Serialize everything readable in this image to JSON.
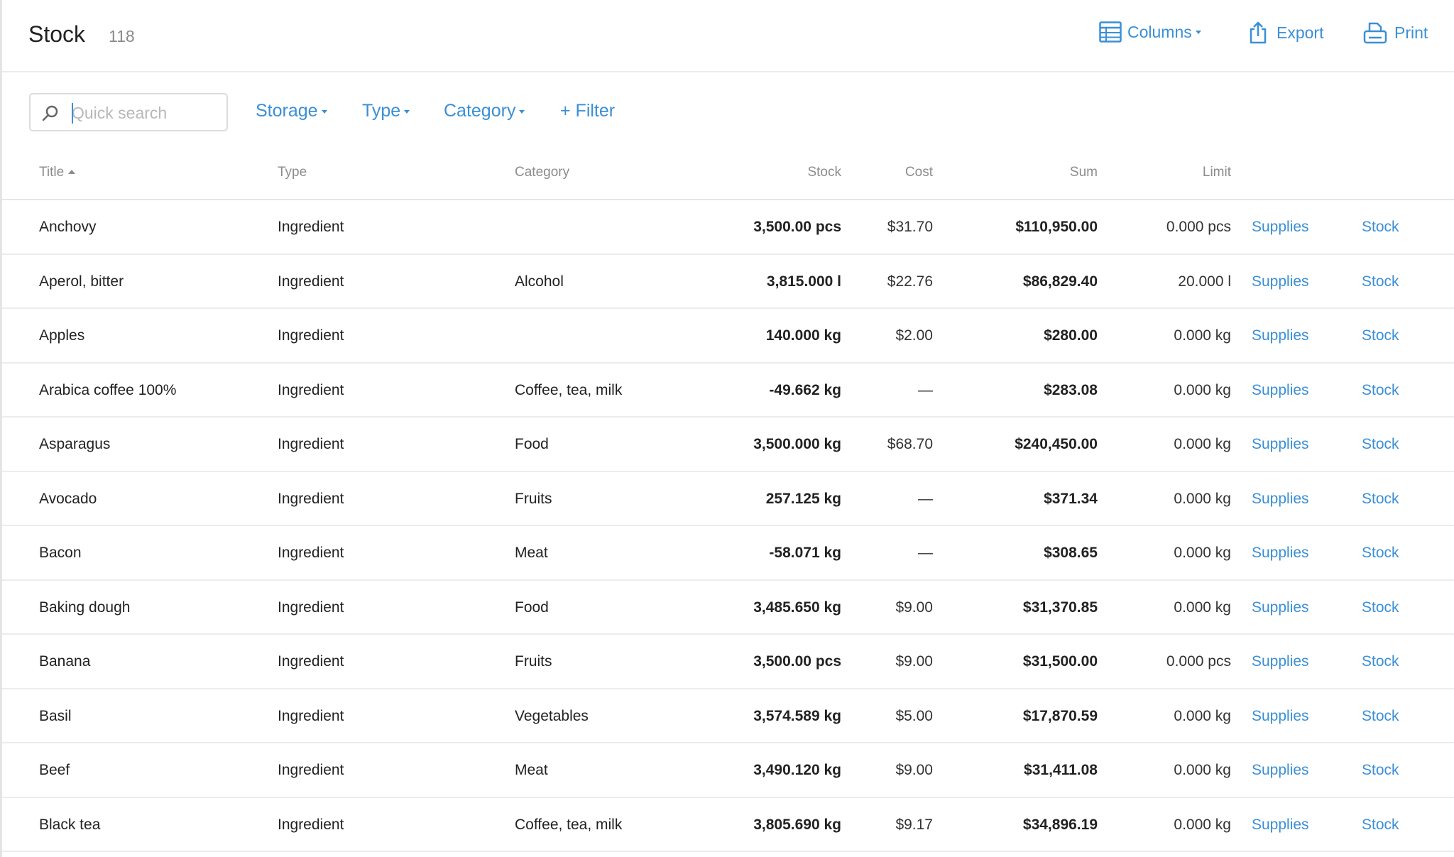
{
  "header": {
    "title": "Stock",
    "count": "118",
    "columns_label": "Columns",
    "export_label": "Export",
    "print_label": "Print"
  },
  "filters": {
    "search_placeholder": "Quick search",
    "storage_label": "Storage",
    "type_label": "Type",
    "category_label": "Category",
    "add_filter_label": "+ Filter"
  },
  "table": {
    "headers": {
      "title": "Title",
      "type": "Type",
      "category": "Category",
      "stock": "Stock",
      "cost": "Cost",
      "sum": "Sum",
      "limit": "Limit"
    },
    "sort": "title-ascending",
    "rows": [
      {
        "title": "Anchovy",
        "type": "Ingredient",
        "category": "",
        "stock": "3,500.00 pcs",
        "cost": "$31.70",
        "sum": "$110,950.00",
        "limit": "0.000 pcs",
        "supplies": "Supplies",
        "stock_link": "Stock"
      },
      {
        "title": "Aperol, bitter",
        "type": "Ingredient",
        "category": "Alcohol",
        "stock": "3,815.000 l",
        "cost": "$22.76",
        "sum": "$86,829.40",
        "limit": "20.000 l",
        "supplies": "Supplies",
        "stock_link": "Stock"
      },
      {
        "title": "Apples",
        "type": "Ingredient",
        "category": "",
        "stock": "140.000 kg",
        "cost": "$2.00",
        "sum": "$280.00",
        "limit": "0.000 kg",
        "supplies": "Supplies",
        "stock_link": "Stock"
      },
      {
        "title": "Arabica coffee 100%",
        "type": "Ingredient",
        "category": "Coffee, tea, milk",
        "stock": "-49.662 kg",
        "cost": "—",
        "sum": "$283.08",
        "limit": "0.000 kg",
        "supplies": "Supplies",
        "stock_link": "Stock"
      },
      {
        "title": "Asparagus",
        "type": "Ingredient",
        "category": "Food",
        "stock": "3,500.000 kg",
        "cost": "$68.70",
        "sum": "$240,450.00",
        "limit": "0.000 kg",
        "supplies": "Supplies",
        "stock_link": "Stock"
      },
      {
        "title": "Avocado",
        "type": "Ingredient",
        "category": "Fruits",
        "stock": "257.125 kg",
        "cost": "—",
        "sum": "$371.34",
        "limit": "0.000 kg",
        "supplies": "Supplies",
        "stock_link": "Stock"
      },
      {
        "title": "Bacon",
        "type": "Ingredient",
        "category": "Meat",
        "stock": "-58.071 kg",
        "cost": "—",
        "sum": "$308.65",
        "limit": "0.000 kg",
        "supplies": "Supplies",
        "stock_link": "Stock"
      },
      {
        "title": "Baking dough",
        "type": "Ingredient",
        "category": "Food",
        "stock": "3,485.650 kg",
        "cost": "$9.00",
        "sum": "$31,370.85",
        "limit": "0.000 kg",
        "supplies": "Supplies",
        "stock_link": "Stock"
      },
      {
        "title": "Banana",
        "type": "Ingredient",
        "category": "Fruits",
        "stock": "3,500.00 pcs",
        "cost": "$9.00",
        "sum": "$31,500.00",
        "limit": "0.000 pcs",
        "supplies": "Supplies",
        "stock_link": "Stock"
      },
      {
        "title": "Basil",
        "type": "Ingredient",
        "category": "Vegetables",
        "stock": "3,574.589 kg",
        "cost": "$5.00",
        "sum": "$17,870.59",
        "limit": "0.000 kg",
        "supplies": "Supplies",
        "stock_link": "Stock"
      },
      {
        "title": "Beef",
        "type": "Ingredient",
        "category": "Meat",
        "stock": "3,490.120 kg",
        "cost": "$9.00",
        "sum": "$31,411.08",
        "limit": "0.000 kg",
        "supplies": "Supplies",
        "stock_link": "Stock"
      },
      {
        "title": "Black tea",
        "type": "Ingredient",
        "category": "Coffee, tea, milk",
        "stock": "3,805.690 kg",
        "cost": "$9.17",
        "sum": "$34,896.19",
        "limit": "0.000 kg",
        "supplies": "Supplies",
        "stock_link": "Stock"
      }
    ]
  },
  "colors": {
    "accent": "#3a8fd6",
    "text": "#222222",
    "muted": "#8c8c8c",
    "border": "#ececec"
  },
  "icons": {
    "columns": "table-grid-icon",
    "export": "share-upload-icon",
    "print": "printer-icon",
    "search": "magnifier-icon"
  }
}
